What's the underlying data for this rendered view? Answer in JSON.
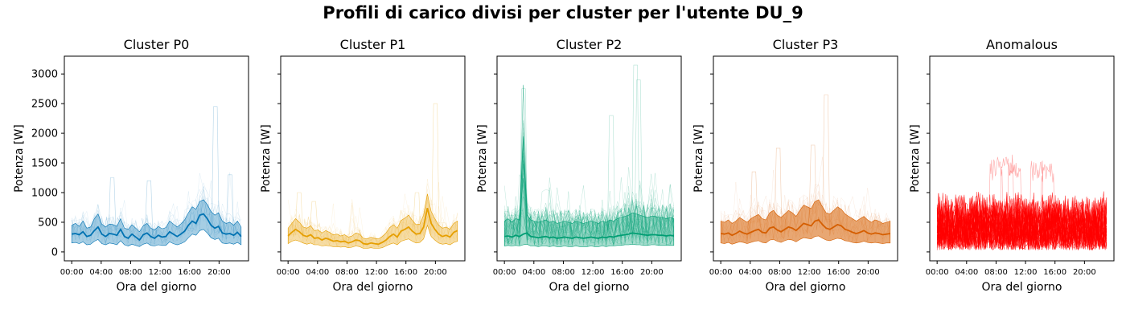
{
  "figure": {
    "title": "Profili di carico divisi per cluster per l'utente DU_9"
  },
  "chart_data": [
    {
      "type": "line",
      "title": "Cluster P0",
      "xlabel": "Ora del giorno",
      "ylabel": "Potenza [W]",
      "x_ticks": [
        "00:00",
        "04:00",
        "08:00",
        "12:00",
        "16:00",
        "20:00"
      ],
      "y_ticks": [
        0,
        500,
        1000,
        1500,
        2000,
        2500,
        3000
      ],
      "ylim": [
        -150,
        3300
      ],
      "color": "#0072B2",
      "band_opacity": 0.35,
      "background_traces": true,
      "peaks": [
        [
          5.5,
          1250
        ],
        [
          10.5,
          1200
        ],
        [
          19.5,
          2450
        ],
        [
          21.5,
          1300
        ]
      ],
      "mean": [
        300,
        310,
        290,
        340,
        260,
        280,
        360,
        420,
        300,
        260,
        310,
        300,
        280,
        380,
        260,
        230,
        300,
        250,
        200,
        290,
        320,
        260,
        230,
        280,
        250,
        260,
        340,
        300,
        260,
        300,
        350,
        450,
        520,
        480,
        620,
        640,
        560,
        450,
        400,
        430,
        320,
        300,
        310,
        280,
        330,
        260
      ],
      "upper": [
        450,
        480,
        430,
        520,
        400,
        420,
        560,
        640,
        470,
        420,
        470,
        460,
        430,
        560,
        400,
        380,
        460,
        400,
        340,
        440,
        480,
        400,
        370,
        430,
        390,
        410,
        520,
        470,
        420,
        470,
        540,
        660,
        760,
        720,
        850,
        880,
        800,
        680,
        620,
        660,
        520,
        480,
        500,
        450,
        520,
        420
      ],
      "lower": [
        150,
        160,
        140,
        170,
        120,
        130,
        180,
        210,
        140,
        120,
        150,
        140,
        120,
        190,
        120,
        100,
        130,
        110,
        90,
        130,
        150,
        110,
        100,
        120,
        110,
        110,
        170,
        140,
        120,
        140,
        170,
        240,
        300,
        280,
        360,
        380,
        320,
        240,
        210,
        230,
        150,
        140,
        150,
        130,
        160,
        120
      ]
    },
    {
      "type": "line",
      "title": "Cluster P1",
      "xlabel": "Ora del giorno",
      "ylabel": "Potenza [W]",
      "x_ticks": [
        "00:00",
        "04:00",
        "08:00",
        "12:00",
        "16:00",
        "20:00"
      ],
      "y_ticks": [
        0,
        500,
        1000,
        1500,
        2000,
        2500,
        3000
      ],
      "ylim": [
        -150,
        3300
      ],
      "color": "#E69F00",
      "band_opacity": 0.35,
      "background_traces": true,
      "peaks": [
        [
          1.5,
          1000
        ],
        [
          3.5,
          850
        ],
        [
          20.0,
          2500
        ],
        [
          17.5,
          1000
        ]
      ],
      "mean": [
        270,
        330,
        380,
        340,
        280,
        260,
        290,
        230,
        240,
        200,
        230,
        210,
        180,
        190,
        170,
        180,
        150,
        170,
        200,
        190,
        140,
        130,
        150,
        140,
        130,
        160,
        200,
        260,
        300,
        250,
        350,
        380,
        420,
        350,
        300,
        310,
        420,
        740,
        480,
        380,
        300,
        260,
        280,
        250,
        330,
        360
      ],
      "upper": [
        400,
        480,
        560,
        500,
        420,
        400,
        440,
        360,
        370,
        320,
        360,
        330,
        290,
        300,
        270,
        290,
        250,
        270,
        320,
        300,
        230,
        220,
        250,
        230,
        220,
        260,
        320,
        410,
        460,
        400,
        530,
        570,
        620,
        530,
        460,
        470,
        620,
        980,
        680,
        560,
        450,
        400,
        420,
        380,
        480,
        520
      ],
      "lower": [
        140,
        180,
        200,
        180,
        150,
        130,
        150,
        120,
        120,
        100,
        110,
        100,
        90,
        90,
        80,
        90,
        70,
        80,
        100,
        90,
        60,
        60,
        70,
        60,
        60,
        70,
        100,
        130,
        150,
        120,
        180,
        200,
        220,
        180,
        150,
        160,
        220,
        450,
        260,
        200,
        150,
        130,
        140,
        120,
        160,
        180
      ]
    },
    {
      "type": "line",
      "title": "Cluster P2",
      "xlabel": "Ora del giorno",
      "ylabel": "Potenza [W]",
      "x_ticks": [
        "00:00",
        "04:00",
        "08:00",
        "12:00",
        "16:00",
        "20:00"
      ],
      "y_ticks": [
        0,
        500,
        1000,
        1500,
        2000,
        2500,
        3000
      ],
      "ylim": [
        -150,
        3300
      ],
      "color": "#009E73",
      "band_opacity": 0.35,
      "background_traces": true,
      "heavy_traces": true,
      "peaks": [
        [
          2.6,
          2750
        ],
        [
          14.5,
          2300
        ],
        [
          17.8,
          3150
        ],
        [
          18.2,
          2900
        ]
      ],
      "mean": [
        260,
        270,
        250,
        280,
        260,
        300,
        320,
        260,
        250,
        240,
        250,
        260,
        240,
        250,
        230,
        240,
        250,
        240,
        230,
        250,
        240,
        230,
        240,
        250,
        240,
        230,
        250,
        240,
        260,
        250,
        270,
        280,
        290,
        300,
        320,
        310,
        300,
        290,
        280,
        290,
        290,
        280,
        280,
        270,
        280,
        270
      ],
      "upper": [
        520,
        560,
        500,
        560,
        540,
        1950,
        620,
        540,
        520,
        500,
        520,
        540,
        500,
        520,
        480,
        500,
        520,
        500,
        480,
        520,
        500,
        480,
        500,
        520,
        500,
        480,
        520,
        500,
        540,
        520,
        560,
        580,
        600,
        620,
        660,
        640,
        620,
        600,
        580,
        600,
        600,
        580,
        580,
        560,
        580,
        560
      ],
      "lower": [
        100,
        110,
        100,
        110,
        100,
        120,
        130,
        100,
        100,
        90,
        100,
        100,
        90,
        100,
        90,
        90,
        100,
        90,
        90,
        100,
        90,
        90,
        90,
        100,
        90,
        90,
        100,
        90,
        100,
        100,
        110,
        110,
        120,
        120,
        130,
        120,
        120,
        110,
        110,
        120,
        120,
        110,
        110,
        110,
        110,
        110
      ]
    },
    {
      "type": "line",
      "title": "Cluster P3",
      "xlabel": "Ora del giorno",
      "ylabel": "Potenza [W]",
      "x_ticks": [
        "00:00",
        "04:00",
        "08:00",
        "12:00",
        "16:00",
        "20:00"
      ],
      "y_ticks": [
        0,
        500,
        1000,
        1500,
        2000,
        2500,
        3000
      ],
      "ylim": [
        -150,
        3300
      ],
      "color": "#D55E00",
      "band_opacity": 0.55,
      "background_traces": true,
      "peaks": [
        [
          4.5,
          1350
        ],
        [
          7.8,
          1750
        ],
        [
          14.3,
          2650
        ],
        [
          12.5,
          1800
        ]
      ],
      "mean": [
        310,
        300,
        320,
        280,
        310,
        350,
        320,
        300,
        330,
        360,
        380,
        330,
        320,
        400,
        420,
        370,
        340,
        380,
        420,
        400,
        360,
        420,
        480,
        460,
        440,
        520,
        540,
        460,
        400,
        380,
        420,
        460,
        440,
        380,
        360,
        330,
        310,
        330,
        360,
        320,
        300,
        320,
        310,
        290,
        300,
        310
      ],
      "upper": [
        520,
        500,
        540,
        480,
        520,
        580,
        540,
        500,
        560,
        600,
        630,
        560,
        540,
        660,
        700,
        620,
        580,
        640,
        700,
        660,
        600,
        700,
        790,
        760,
        730,
        850,
        880,
        760,
        660,
        640,
        700,
        760,
        720,
        640,
        600,
        560,
        520,
        560,
        600,
        540,
        500,
        540,
        520,
        480,
        500,
        520
      ],
      "lower": [
        150,
        140,
        160,
        130,
        150,
        170,
        160,
        140,
        160,
        180,
        190,
        160,
        150,
        200,
        210,
        180,
        160,
        190,
        210,
        200,
        170,
        210,
        240,
        230,
        220,
        260,
        270,
        230,
        200,
        190,
        210,
        230,
        220,
        190,
        180,
        160,
        150,
        160,
        180,
        160,
        150,
        160,
        150,
        140,
        150,
        150
      ]
    },
    {
      "type": "line",
      "title": "Anomalous",
      "xlabel": "Ora del giorno",
      "ylabel": "Potenza [W]",
      "x_ticks": [
        "00:00",
        "04:00",
        "08:00",
        "12:00",
        "16:00",
        "20:00"
      ],
      "y_ticks": [
        0,
        500,
        1000,
        1500,
        2000,
        2500,
        3000
      ],
      "ylim": [
        -150,
        3300
      ],
      "color": "#FF0000",
      "anomalous_traces": true,
      "peaks": [
        [
          8.0,
          1600
        ],
        [
          9.5,
          1650
        ],
        [
          10.5,
          1550
        ],
        [
          13.5,
          1550
        ],
        [
          15.0,
          1500
        ]
      ],
      "range_low": 30,
      "range_high": 1050
    }
  ]
}
